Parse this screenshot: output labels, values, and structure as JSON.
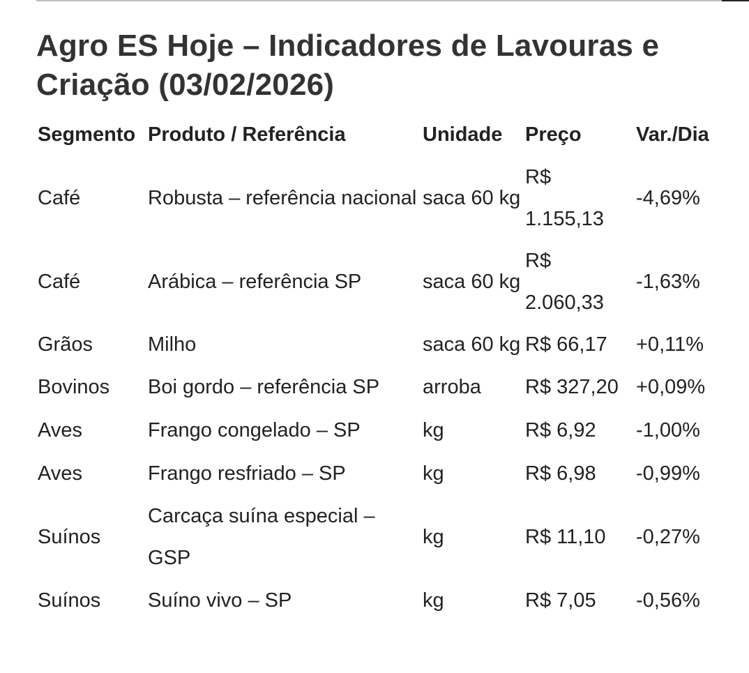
{
  "title": "Agro ES Hoje – Indicadores de Lavouras e Criação (03/02/2026)",
  "table": {
    "headers": [
      "Segmento",
      "Produto / Referência",
      "Unidade",
      "Preço",
      "Var./Dia"
    ],
    "rows": [
      {
        "segmento": "Café",
        "produto": "Robusta – referência nacional",
        "unidade": "saca 60 kg",
        "preco": "R$ 1.155,13",
        "var": "-4,69%"
      },
      {
        "segmento": "Café",
        "produto": "Arábica – referência SP",
        "unidade": "saca 60 kg",
        "preco": "R$ 2.060,33",
        "var": "-1,63%"
      },
      {
        "segmento": "Grãos",
        "produto": "Milho",
        "unidade": "saca 60 kg",
        "preco": "R$ 66,17",
        "var": "+0,11%"
      },
      {
        "segmento": "Bovinos",
        "produto": "Boi gordo – referência SP",
        "unidade": "arroba",
        "preco": "R$ 327,20",
        "var": "+0,09%"
      },
      {
        "segmento": "Aves",
        "produto": "Frango congelado – SP",
        "unidade": "kg",
        "preco": "R$ 6,92",
        "var": "-1,00%"
      },
      {
        "segmento": "Aves",
        "produto": "Frango resfriado – SP",
        "unidade": "kg",
        "preco": "R$ 6,98",
        "var": "-0,99%"
      },
      {
        "segmento": "Suínos",
        "produto": "Carcaça suína especial – GSP",
        "unidade": "kg",
        "preco": "R$ 11,10",
        "var": "-0,27%"
      },
      {
        "segmento": "Suínos",
        "produto": "Suíno vivo – SP",
        "unidade": "kg",
        "preco": "R$ 7,05",
        "var": "-0,56%"
      }
    ]
  }
}
